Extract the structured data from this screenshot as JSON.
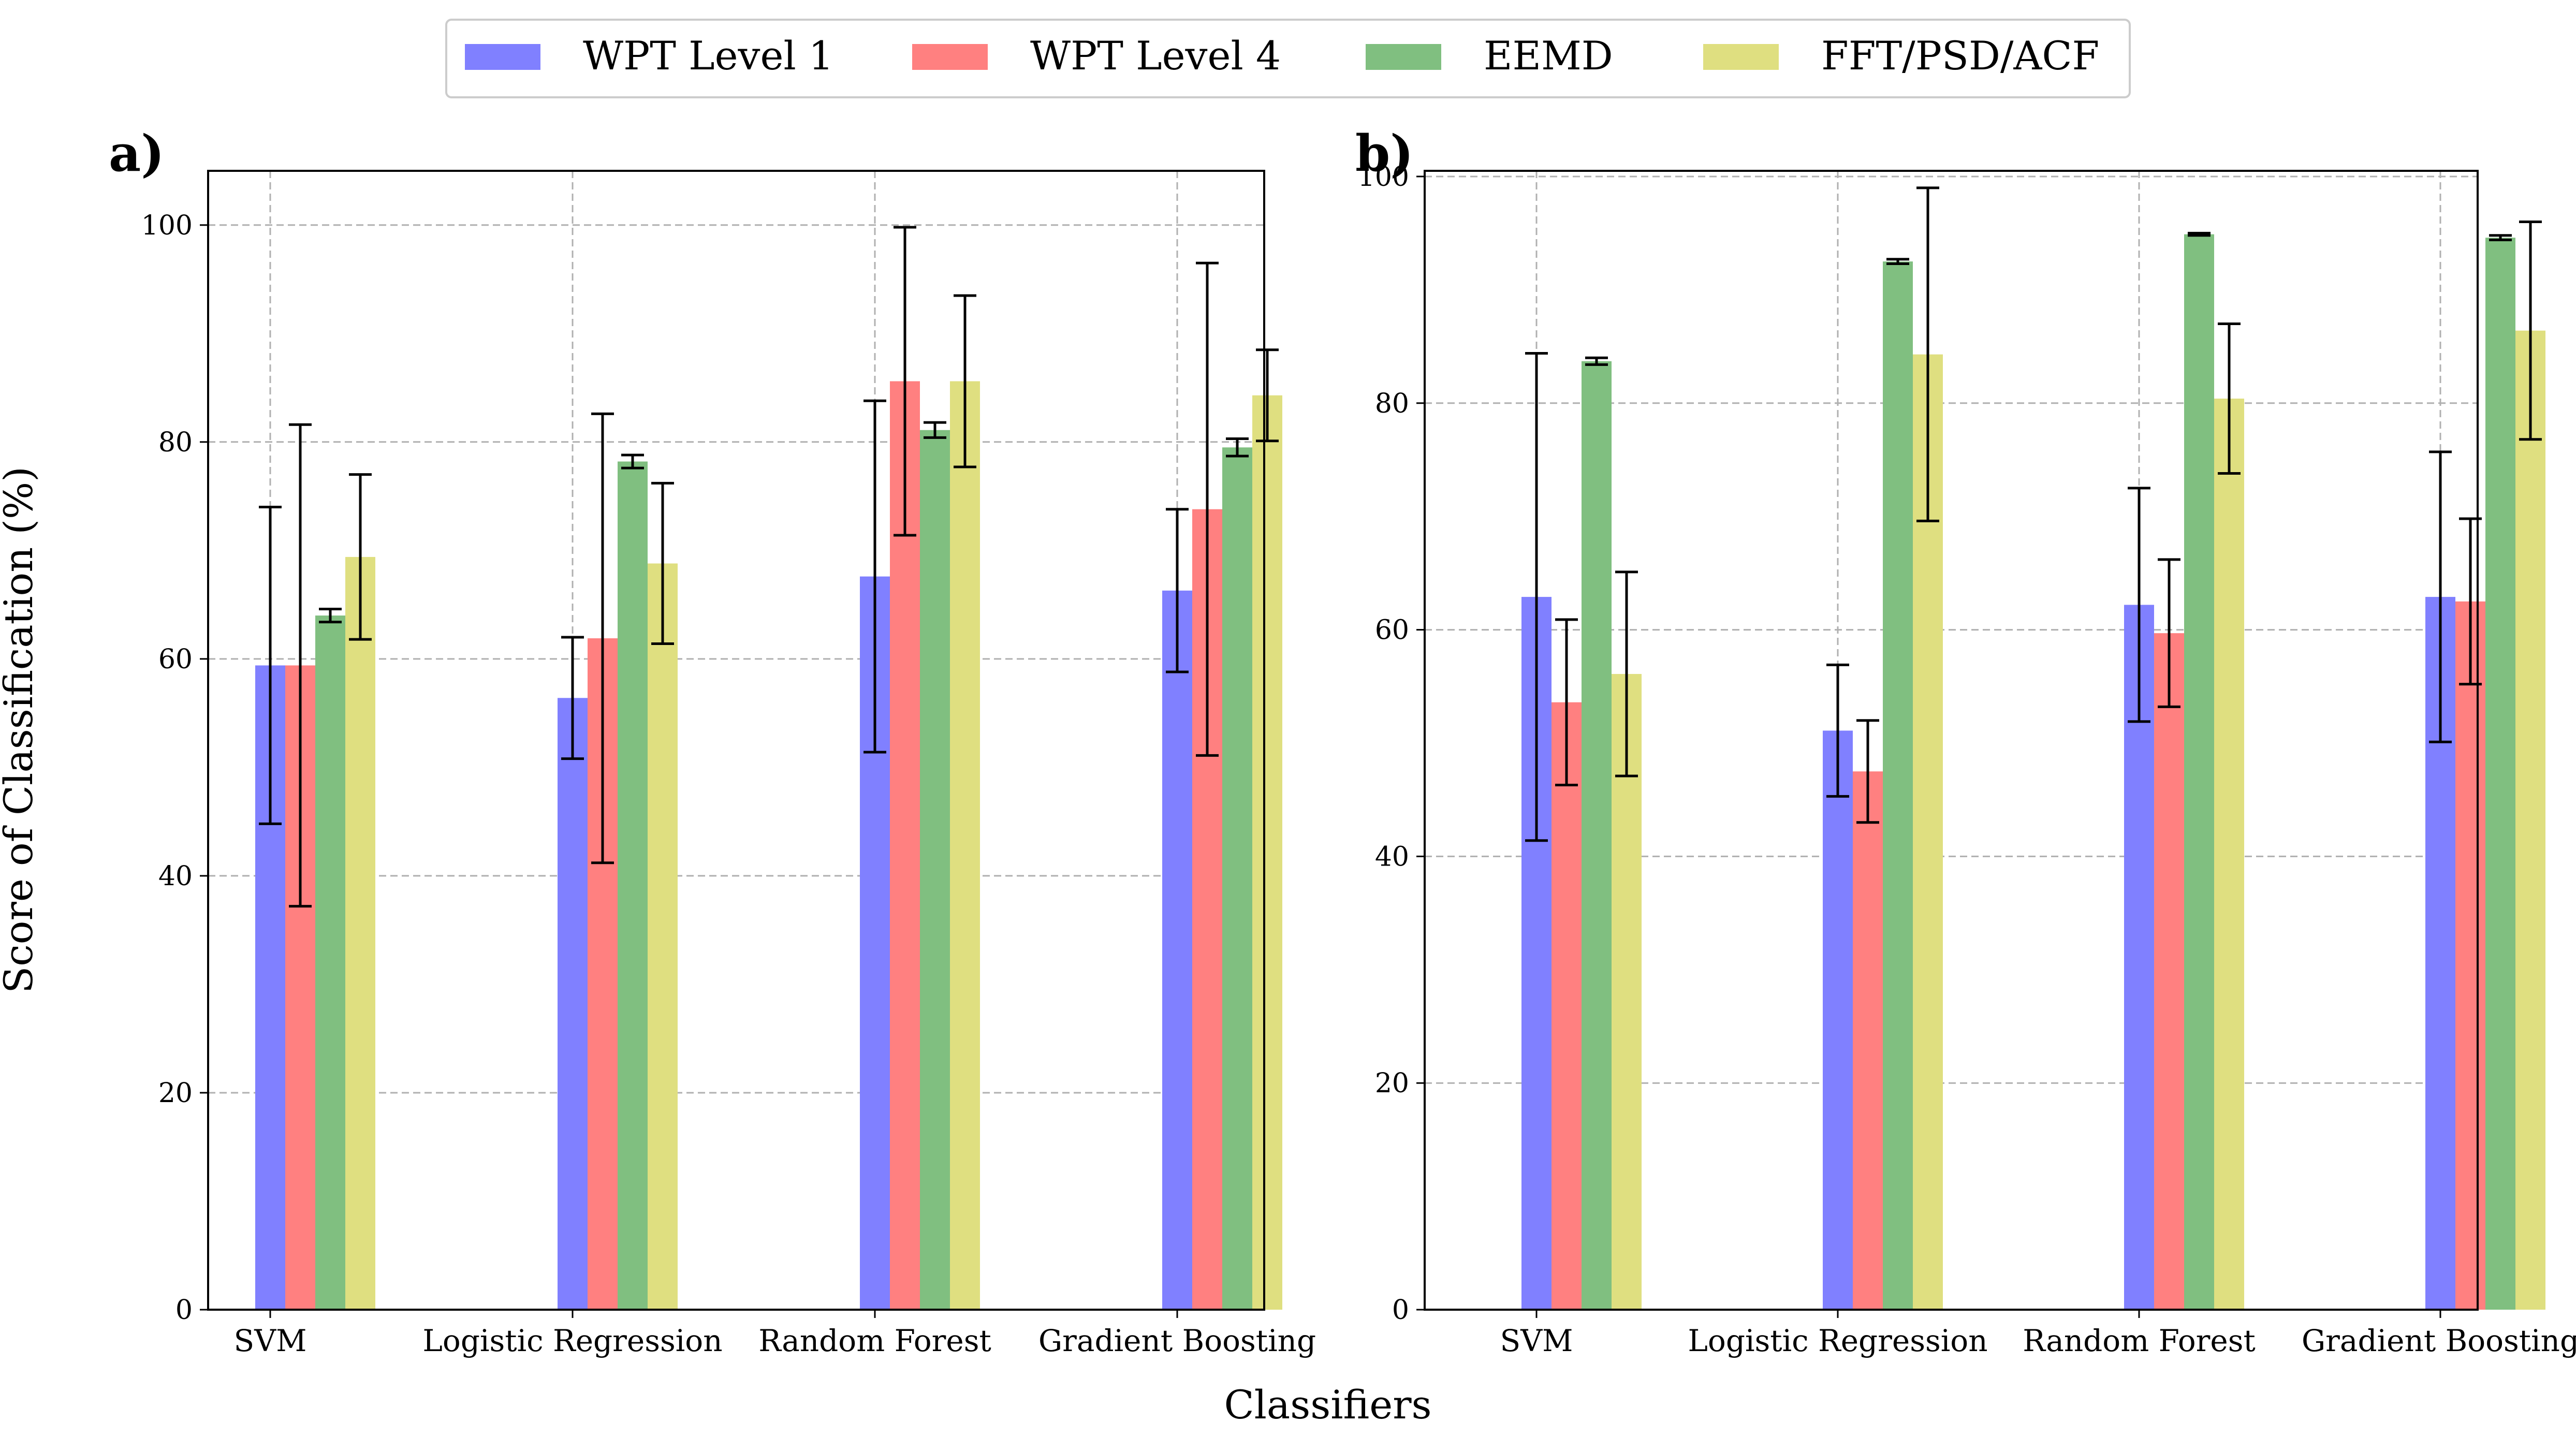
{
  "chart_data": [
    {
      "type": "bar",
      "panel_label": "a)",
      "categories": [
        "SVM",
        "Logistic Regression",
        "Random Forest",
        "Gradient Boosting"
      ],
      "series": [
        {
          "name": "WPT Level 1",
          "values": [
            59.4,
            56.4,
            67.6,
            66.3
          ],
          "errors": [
            14.6,
            5.6,
            16.2,
            7.5
          ]
        },
        {
          "name": "WPT Level 4",
          "values": [
            59.4,
            61.9,
            85.6,
            73.8
          ],
          "errors": [
            22.2,
            20.7,
            14.2,
            22.7
          ]
        },
        {
          "name": "EEMD",
          "values": [
            64.0,
            78.2,
            81.1,
            79.5
          ],
          "errors": [
            0.6,
            0.6,
            0.7,
            0.8
          ]
        },
        {
          "name": "FFT/PSD/ACF",
          "values": [
            69.4,
            68.8,
            85.6,
            84.3
          ],
          "errors": [
            7.6,
            7.4,
            7.9,
            4.2
          ]
        }
      ],
      "ylim": [
        0,
        105
      ],
      "yticks": [
        0,
        20,
        40,
        60,
        80,
        100
      ],
      "grid": true
    },
    {
      "type": "bar",
      "panel_label": "b)",
      "categories": [
        "SVM",
        "Logistic Regression",
        "Random Forest",
        "Gradient Boosting"
      ],
      "series": [
        {
          "name": "WPT Level 1",
          "values": [
            62.9,
            51.1,
            62.2,
            62.9
          ],
          "errors": [
            21.5,
            5.8,
            10.3,
            12.8
          ]
        },
        {
          "name": "WPT Level 4",
          "values": [
            53.6,
            47.5,
            59.7,
            62.5
          ],
          "errors": [
            7.3,
            4.5,
            6.5,
            7.3
          ]
        },
        {
          "name": "EEMD",
          "values": [
            83.7,
            92.5,
            94.9,
            94.6
          ],
          "errors": [
            0.3,
            0.2,
            0.1,
            0.2
          ]
        },
        {
          "name": "FFT/PSD/ACF",
          "values": [
            56.1,
            84.3,
            80.4,
            86.4
          ],
          "errors": [
            9.0,
            14.7,
            6.6,
            9.6
          ]
        }
      ],
      "ylim": [
        0,
        100.5
      ],
      "yticks": [
        0,
        20,
        40,
        60,
        80,
        100
      ],
      "grid": true
    }
  ],
  "legend": {
    "position": "top-center",
    "entries": [
      "WPT Level 1",
      "WPT Level 4",
      "EEMD",
      "FFT/PSD/ACF"
    ]
  },
  "colors": {
    "WPT Level 1": "#8080ff",
    "WPT Level 4": "#ff8080",
    "EEMD": "#80bf80",
    "FFT/PSD/ACF": "#dfdf80",
    "grid": "#b0b0b0",
    "axis": "#000000"
  },
  "xlabel": "Classifiers",
  "ylabel": "Score of Classification (%)"
}
